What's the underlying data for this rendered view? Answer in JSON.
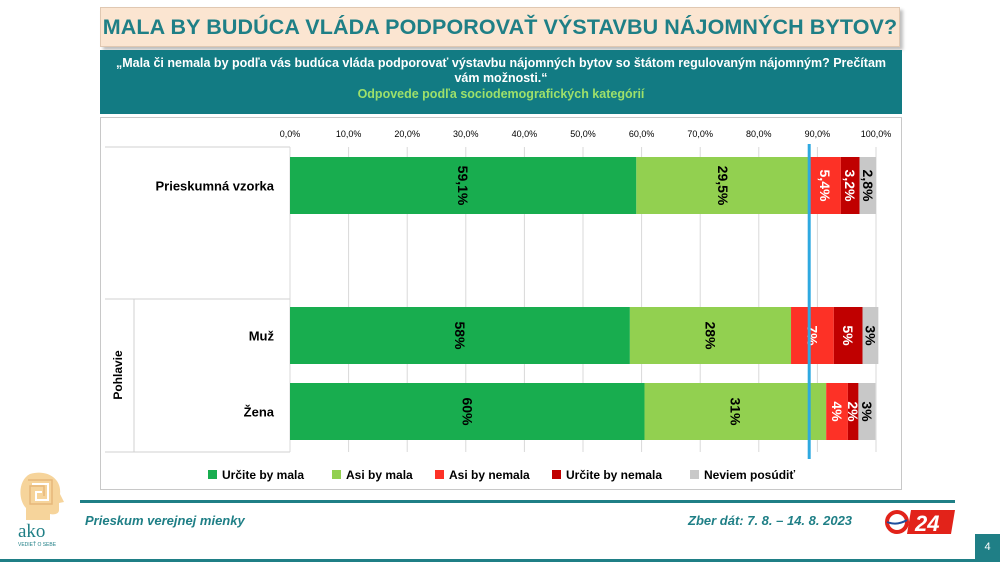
{
  "title": "MALA BY BUDÚCA VLÁDA PODPOROVAŤ VÝSTAVBU NÁJOMNÝCH BYTOV?",
  "question": "„Mala či nemala by podľa vás budúca vláda podporovať výstavbu nájomných bytov so štátom regulovaným nájomným? Prečítam vám možnosti.“",
  "subtitle": "Odpovede podľa sociodemografických kategórií",
  "footer": {
    "survey_label": "Prieskum verejnej mienky",
    "collection_dates": "Zber dát: 7. 8. – 14. 8. 2023",
    "page_number": "4"
  },
  "logos": {
    "ako_text": "ako",
    "ako_tagline": "VEDIEŤ O SEBE",
    "tv_text": "24"
  },
  "chart_data": {
    "type": "bar",
    "orientation": "horizontal-stacked",
    "x_ticks": [
      "0,0%",
      "10,0%",
      "20,0%",
      "30,0%",
      "40,0%",
      "50,0%",
      "60,0%",
      "70,0%",
      "80,0%",
      "90,0%",
      "100,0%"
    ],
    "xlim": [
      0,
      100
    ],
    "reference_line": 88.6,
    "group_label": "Pohlavie",
    "categories": [
      "Prieskumná vzorka",
      "Muž",
      "Žena"
    ],
    "series": [
      {
        "name": "Určite by mala",
        "color": "#18ad4f",
        "values": [
          59.1,
          58,
          60.5
        ],
        "labels": [
          "59,1%",
          "58%",
          "60%"
        ],
        "label_color": "#000000"
      },
      {
        "name": "Asi by mala",
        "color": "#92d050",
        "values": [
          29.5,
          27.5,
          31
        ],
        "labels": [
          "29,5%",
          "28%",
          "31%"
        ],
        "label_color": "#000000"
      },
      {
        "name": "Asi by nemala",
        "color": "#fd3126",
        "values": [
          5.4,
          7.3,
          3.7
        ],
        "labels": [
          "5,4%",
          "7%",
          "4%"
        ],
        "label_color": "#ffffff"
      },
      {
        "name": "Určite by nemala",
        "color": "#c00000",
        "values": [
          3.2,
          4.9,
          1.8
        ],
        "labels": [
          "3,2%",
          "5%",
          "2%"
        ],
        "label_color": "#ffffff"
      },
      {
        "name": "Neviem posúdiť",
        "color": "#c8c8c8",
        "values": [
          2.8,
          2.7,
          2.9
        ],
        "labels": [
          "2,8%",
          "3%",
          "3%"
        ],
        "label_color": "#000000"
      }
    ],
    "legend_position": "bottom",
    "grid": true
  }
}
